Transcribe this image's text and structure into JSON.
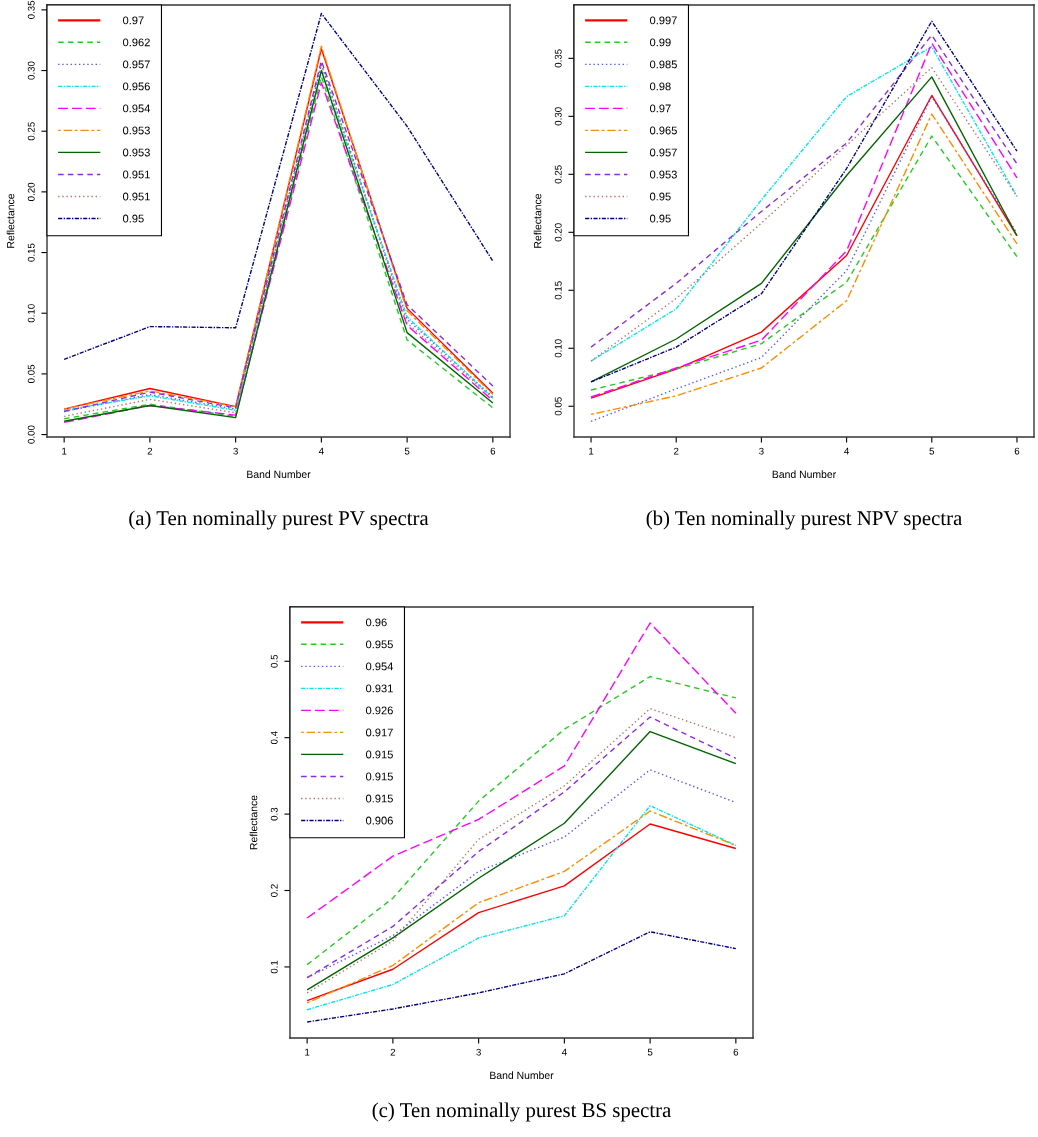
{
  "chart_data": [
    {
      "type": "line",
      "xlabel": "Band Number",
      "ylabel": "Reflectance",
      "x": [
        1,
        2,
        3,
        4,
        5,
        6
      ],
      "xlim": [
        0.8,
        6.2
      ],
      "xticks": [
        1,
        2,
        3,
        4,
        5,
        6
      ],
      "ylim": [
        -0.002,
        0.354
      ],
      "yticks": [
        {
          "value": 0,
          "label": "0.00"
        },
        {
          "value": 0.05,
          "label": "0.05"
        },
        {
          "value": 0.1,
          "label": "0.10"
        },
        {
          "value": 0.15,
          "label": "0.15"
        },
        {
          "value": 0.2,
          "label": "0.20"
        },
        {
          "value": 0.25,
          "label": "0.25"
        },
        {
          "value": 0.3,
          "label": "0.30"
        },
        {
          "value": 0.35,
          "label": "0.35"
        }
      ],
      "legend": "top left",
      "grid": false,
      "marker": "none",
      "annotations": [
        "(a) Ten nominally purest PV spectra"
      ],
      "series": [
        {
          "name": "0.97",
          "color": "#ff0000",
          "line_style": "solid",
          "values": [
            0.021,
            0.038,
            0.023,
            0.318,
            0.104,
            0.034
          ]
        },
        {
          "name": "0.962",
          "color": "#22cc22",
          "line_style": "dashed",
          "values": [
            0.013,
            0.025,
            0.015,
            0.295,
            0.078,
            0.022
          ]
        },
        {
          "name": "0.957",
          "color": "#5555ff",
          "line_style": "dotted",
          "values": [
            0.019,
            0.033,
            0.021,
            0.305,
            0.095,
            0.031
          ]
        },
        {
          "name": "0.956",
          "color": "#00e5ee",
          "line_style": "dashdot",
          "values": [
            0.02,
            0.032,
            0.02,
            0.3,
            0.097,
            0.03
          ]
        },
        {
          "name": "0.954",
          "color": "#ff00ff",
          "line_style": "longdash",
          "values": [
            0.01,
            0.024,
            0.016,
            0.29,
            0.09,
            0.028
          ]
        },
        {
          "name": "0.953",
          "color": "#ff8c00",
          "line_style": "twodash",
          "values": [
            0.021,
            0.036,
            0.023,
            0.32,
            0.102,
            0.033
          ]
        },
        {
          "name": "0.953",
          "color": "#006400",
          "line_style": "solid",
          "values": [
            0.011,
            0.024,
            0.014,
            0.3,
            0.084,
            0.026
          ]
        },
        {
          "name": "0.951",
          "color": "#8a2be2",
          "line_style": "dashed",
          "values": [
            0.019,
            0.035,
            0.022,
            0.308,
            0.107,
            0.04
          ]
        },
        {
          "name": "0.951",
          "color": "#b5736b",
          "line_style": "dotted",
          "values": [
            0.015,
            0.029,
            0.018,
            0.305,
            0.092,
            0.03
          ]
        },
        {
          "name": "0.95",
          "color": "#000080",
          "line_style": "dashdot",
          "values": [
            0.062,
            0.089,
            0.088,
            0.347,
            0.254,
            0.143
          ]
        }
      ]
    },
    {
      "type": "line",
      "xlabel": "Band Number",
      "ylabel": "Reflectance",
      "x": [
        1,
        2,
        3,
        4,
        5,
        6
      ],
      "xlim": [
        0.8,
        6.2
      ],
      "xticks": [
        1,
        2,
        3,
        4,
        5,
        6
      ],
      "ylim": [
        0.0235,
        0.396
      ],
      "yticks": [
        {
          "value": 0.05,
          "label": "0.05"
        },
        {
          "value": 0.1,
          "label": "0.10"
        },
        {
          "value": 0.15,
          "label": "0.15"
        },
        {
          "value": 0.2,
          "label": "0.20"
        },
        {
          "value": 0.25,
          "label": "0.25"
        },
        {
          "value": 0.3,
          "label": "0.30"
        },
        {
          "value": 0.35,
          "label": "0.35"
        }
      ],
      "legend": "top left",
      "grid": false,
      "marker": "none",
      "annotations": [
        "(b) Ten nominally purest NPV spectra"
      ],
      "series": [
        {
          "name": "0.997",
          "color": "#ff0000",
          "line_style": "solid",
          "values": [
            0.057,
            0.082,
            0.114,
            0.18,
            0.318,
            0.197
          ]
        },
        {
          "name": "0.99",
          "color": "#22cc22",
          "line_style": "dashed",
          "values": [
            0.064,
            0.082,
            0.104,
            0.157,
            0.283,
            0.179
          ]
        },
        {
          "name": "0.985",
          "color": "#5555ff",
          "line_style": "dotted",
          "values": [
            0.037,
            0.065,
            0.092,
            0.167,
            0.317,
            0.199
          ]
        },
        {
          "name": "0.98",
          "color": "#00e5ee",
          "line_style": "dashdot",
          "values": [
            0.089,
            0.134,
            0.228,
            0.317,
            0.36,
            0.231
          ]
        },
        {
          "name": "0.97",
          "color": "#ff00ff",
          "line_style": "longdash",
          "values": [
            0.058,
            0.083,
            0.107,
            0.184,
            0.363,
            0.247
          ]
        },
        {
          "name": "0.965",
          "color": "#ff8c00",
          "line_style": "twodash",
          "values": [
            0.043,
            0.059,
            0.083,
            0.141,
            0.302,
            0.19
          ]
        },
        {
          "name": "0.957",
          "color": "#006400",
          "line_style": "solid",
          "values": [
            0.071,
            0.108,
            0.156,
            0.249,
            0.334,
            0.197
          ]
        },
        {
          "name": "0.953",
          "color": "#8a2be2",
          "line_style": "dashed",
          "values": [
            0.101,
            0.156,
            0.218,
            0.277,
            0.37,
            0.259
          ]
        },
        {
          "name": "0.95",
          "color": "#b5736b",
          "line_style": "dotted",
          "values": [
            0.089,
            0.143,
            0.208,
            0.275,
            0.342,
            0.231
          ]
        },
        {
          "name": "0.95",
          "color": "#000080",
          "line_style": "dashdot",
          "values": [
            0.071,
            0.101,
            0.147,
            0.255,
            0.382,
            0.27
          ]
        }
      ]
    },
    {
      "type": "line",
      "xlabel": "Band Number",
      "ylabel": "Reflectance",
      "x": [
        1,
        2,
        3,
        4,
        5,
        6
      ],
      "xlim": [
        0.8,
        6.2
      ],
      "xticks": [
        1,
        2,
        3,
        4,
        5,
        6
      ],
      "ylim": [
        0.007,
        0.571
      ],
      "yticks": [
        0.1,
        0.2,
        0.3,
        0.4,
        0.5
      ],
      "legend": "top left",
      "grid": false,
      "marker": "none",
      "annotations": [
        "(c) Ten nominally purest BS spectra"
      ],
      "series": [
        {
          "name": "0.96",
          "color": "#ff0000",
          "line_style": "solid",
          "values": [
            0.056,
            0.097,
            0.171,
            0.206,
            0.287,
            0.255
          ]
        },
        {
          "name": "0.955",
          "color": "#22cc22",
          "line_style": "dashed",
          "values": [
            0.103,
            0.19,
            0.317,
            0.411,
            0.48,
            0.452
          ]
        },
        {
          "name": "0.954",
          "color": "#5555ff",
          "line_style": "dotted",
          "values": [
            0.086,
            0.141,
            0.225,
            0.27,
            0.358,
            0.315
          ]
        },
        {
          "name": "0.931",
          "color": "#00e5ee",
          "line_style": "dashdot",
          "values": [
            0.044,
            0.077,
            0.138,
            0.167,
            0.311,
            0.259
          ]
        },
        {
          "name": "0.926",
          "color": "#ff00ff",
          "line_style": "longdash",
          "values": [
            0.164,
            0.245,
            0.293,
            0.363,
            0.55,
            0.432
          ]
        },
        {
          "name": "0.917",
          "color": "#ff8c00",
          "line_style": "twodash",
          "values": [
            0.053,
            0.102,
            0.184,
            0.225,
            0.304,
            0.259
          ]
        },
        {
          "name": "0.915",
          "color": "#006400",
          "line_style": "solid",
          "values": [
            0.07,
            0.138,
            0.216,
            0.288,
            0.408,
            0.366
          ]
        },
        {
          "name": "0.915",
          "color": "#8a2be2",
          "line_style": "dashed",
          "values": [
            0.086,
            0.153,
            0.251,
            0.329,
            0.427,
            0.373
          ]
        },
        {
          "name": "0.915",
          "color": "#b5736b",
          "line_style": "dotted",
          "values": [
            0.066,
            0.134,
            0.267,
            0.337,
            0.438,
            0.4
          ]
        },
        {
          "name": "0.906",
          "color": "#000080",
          "line_style": "dashdot",
          "values": [
            0.028,
            0.045,
            0.066,
            0.091,
            0.146,
            0.124
          ]
        }
      ]
    }
  ]
}
